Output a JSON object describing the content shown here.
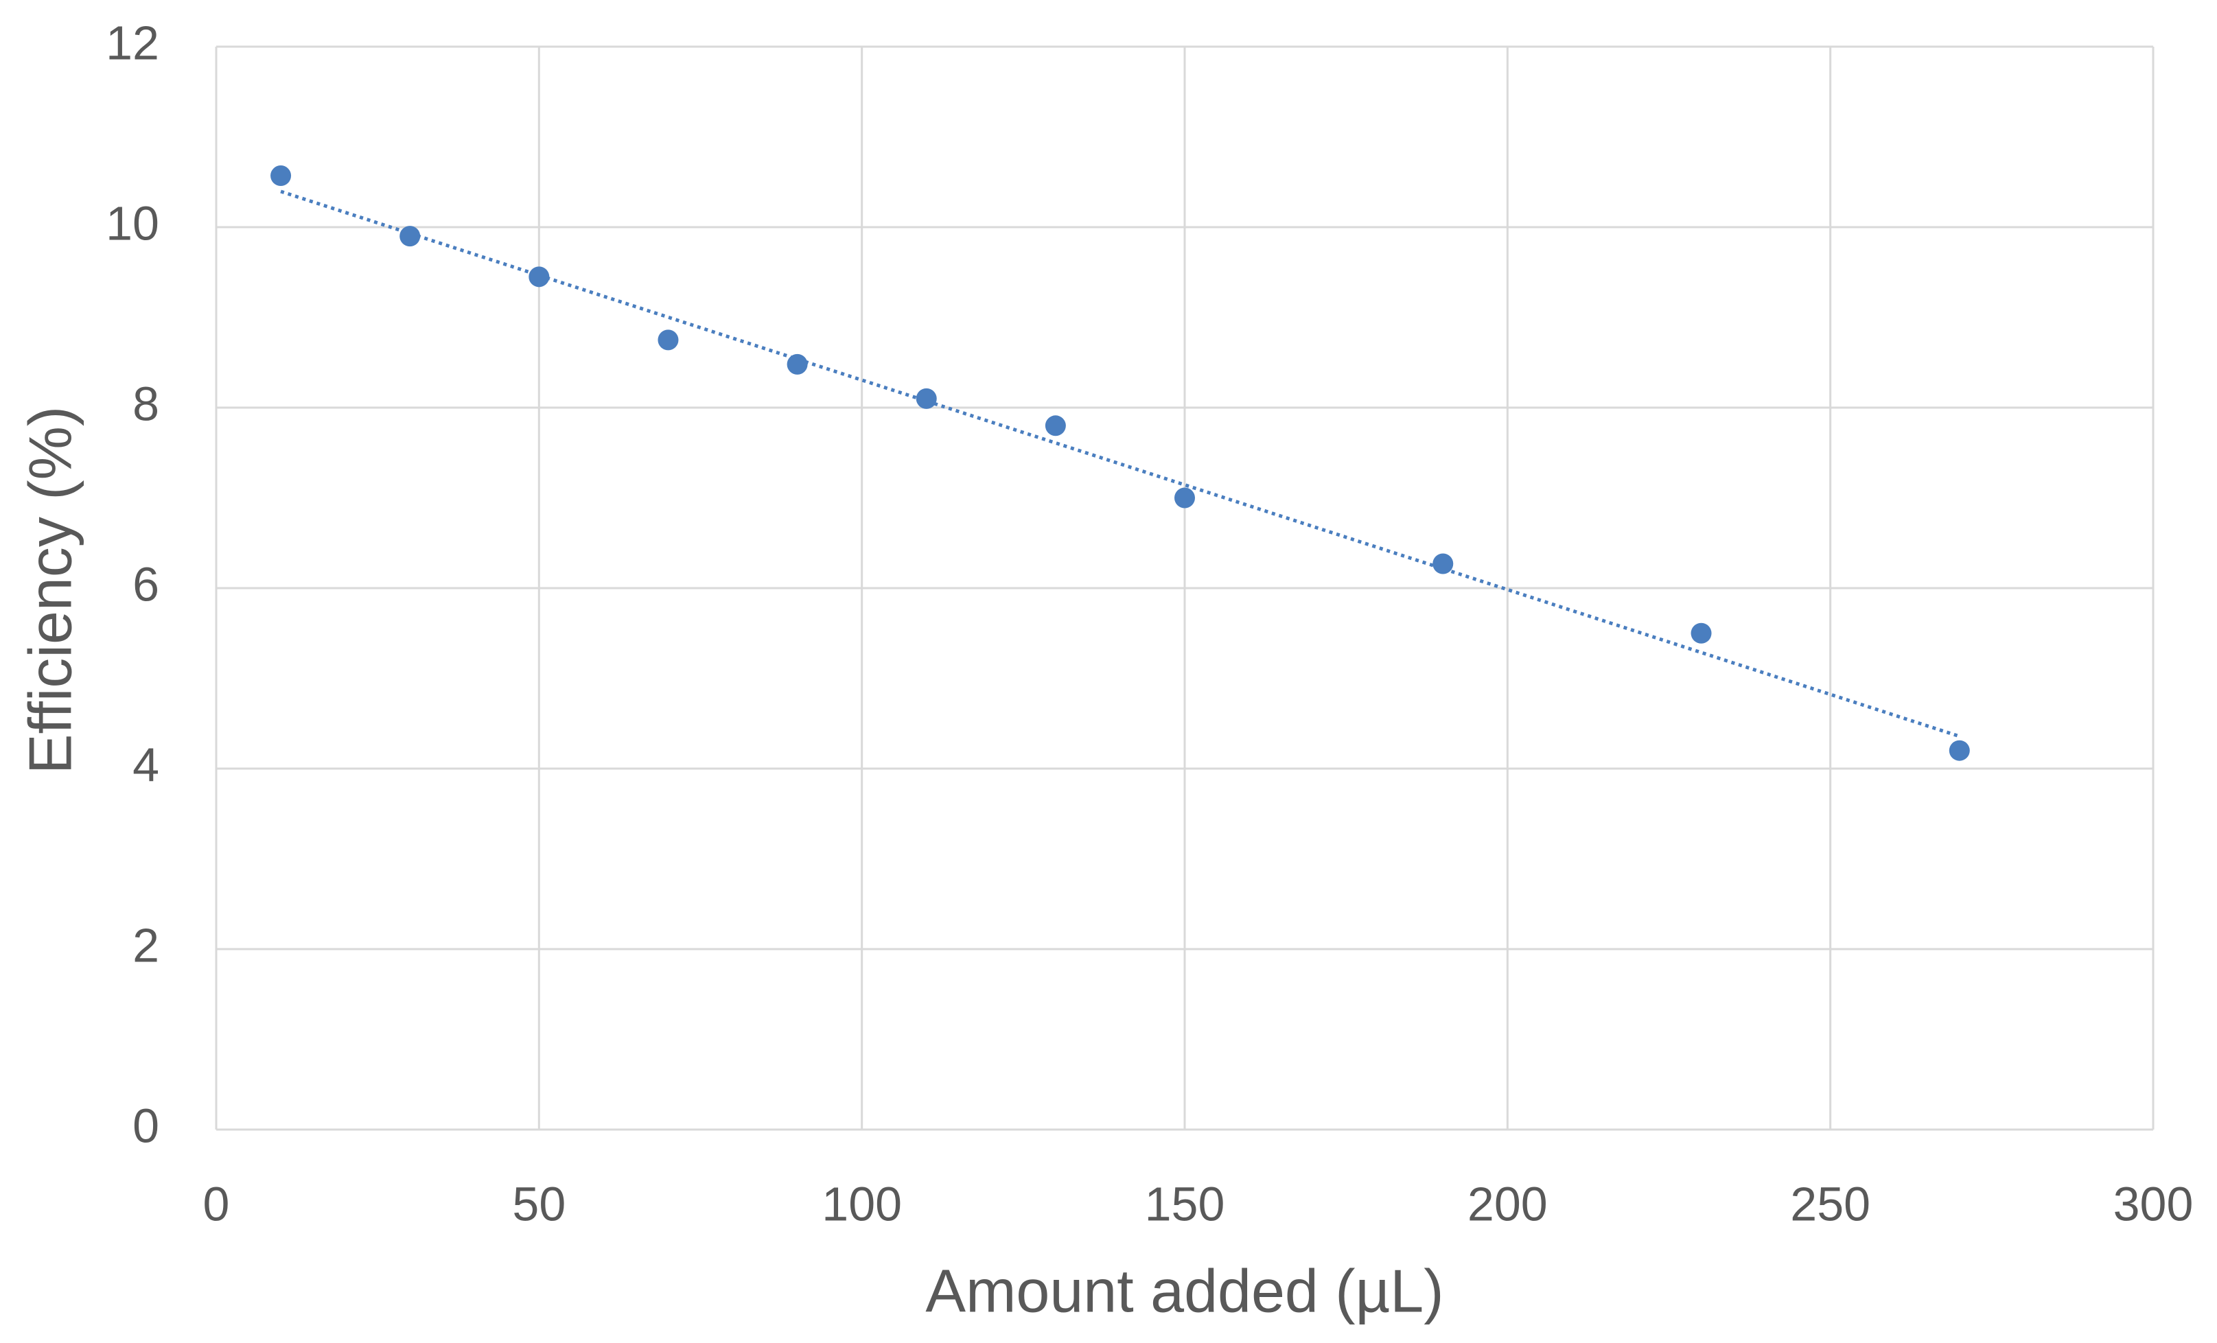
{
  "chart_data": {
    "type": "scatter",
    "x_label": "Amount added (µL)",
    "y_label": "Efficiency (%)",
    "x": [
      10,
      30,
      50,
      70,
      90,
      110,
      130,
      150,
      190,
      230,
      270
    ],
    "values": [
      10.57,
      9.9,
      9.45,
      8.75,
      8.48,
      8.1,
      7.8,
      7.0,
      6.27,
      5.5,
      4.2
    ],
    "color": "#4a7ebf",
    "trendline": "linear",
    "xlim": [
      0,
      300
    ],
    "xticks": [
      0,
      50,
      100,
      150,
      200,
      250,
      300
    ],
    "ylim": [
      0,
      12
    ],
    "yticks": [
      0,
      2,
      4,
      6,
      8,
      10,
      12
    ],
    "grid": true
  }
}
